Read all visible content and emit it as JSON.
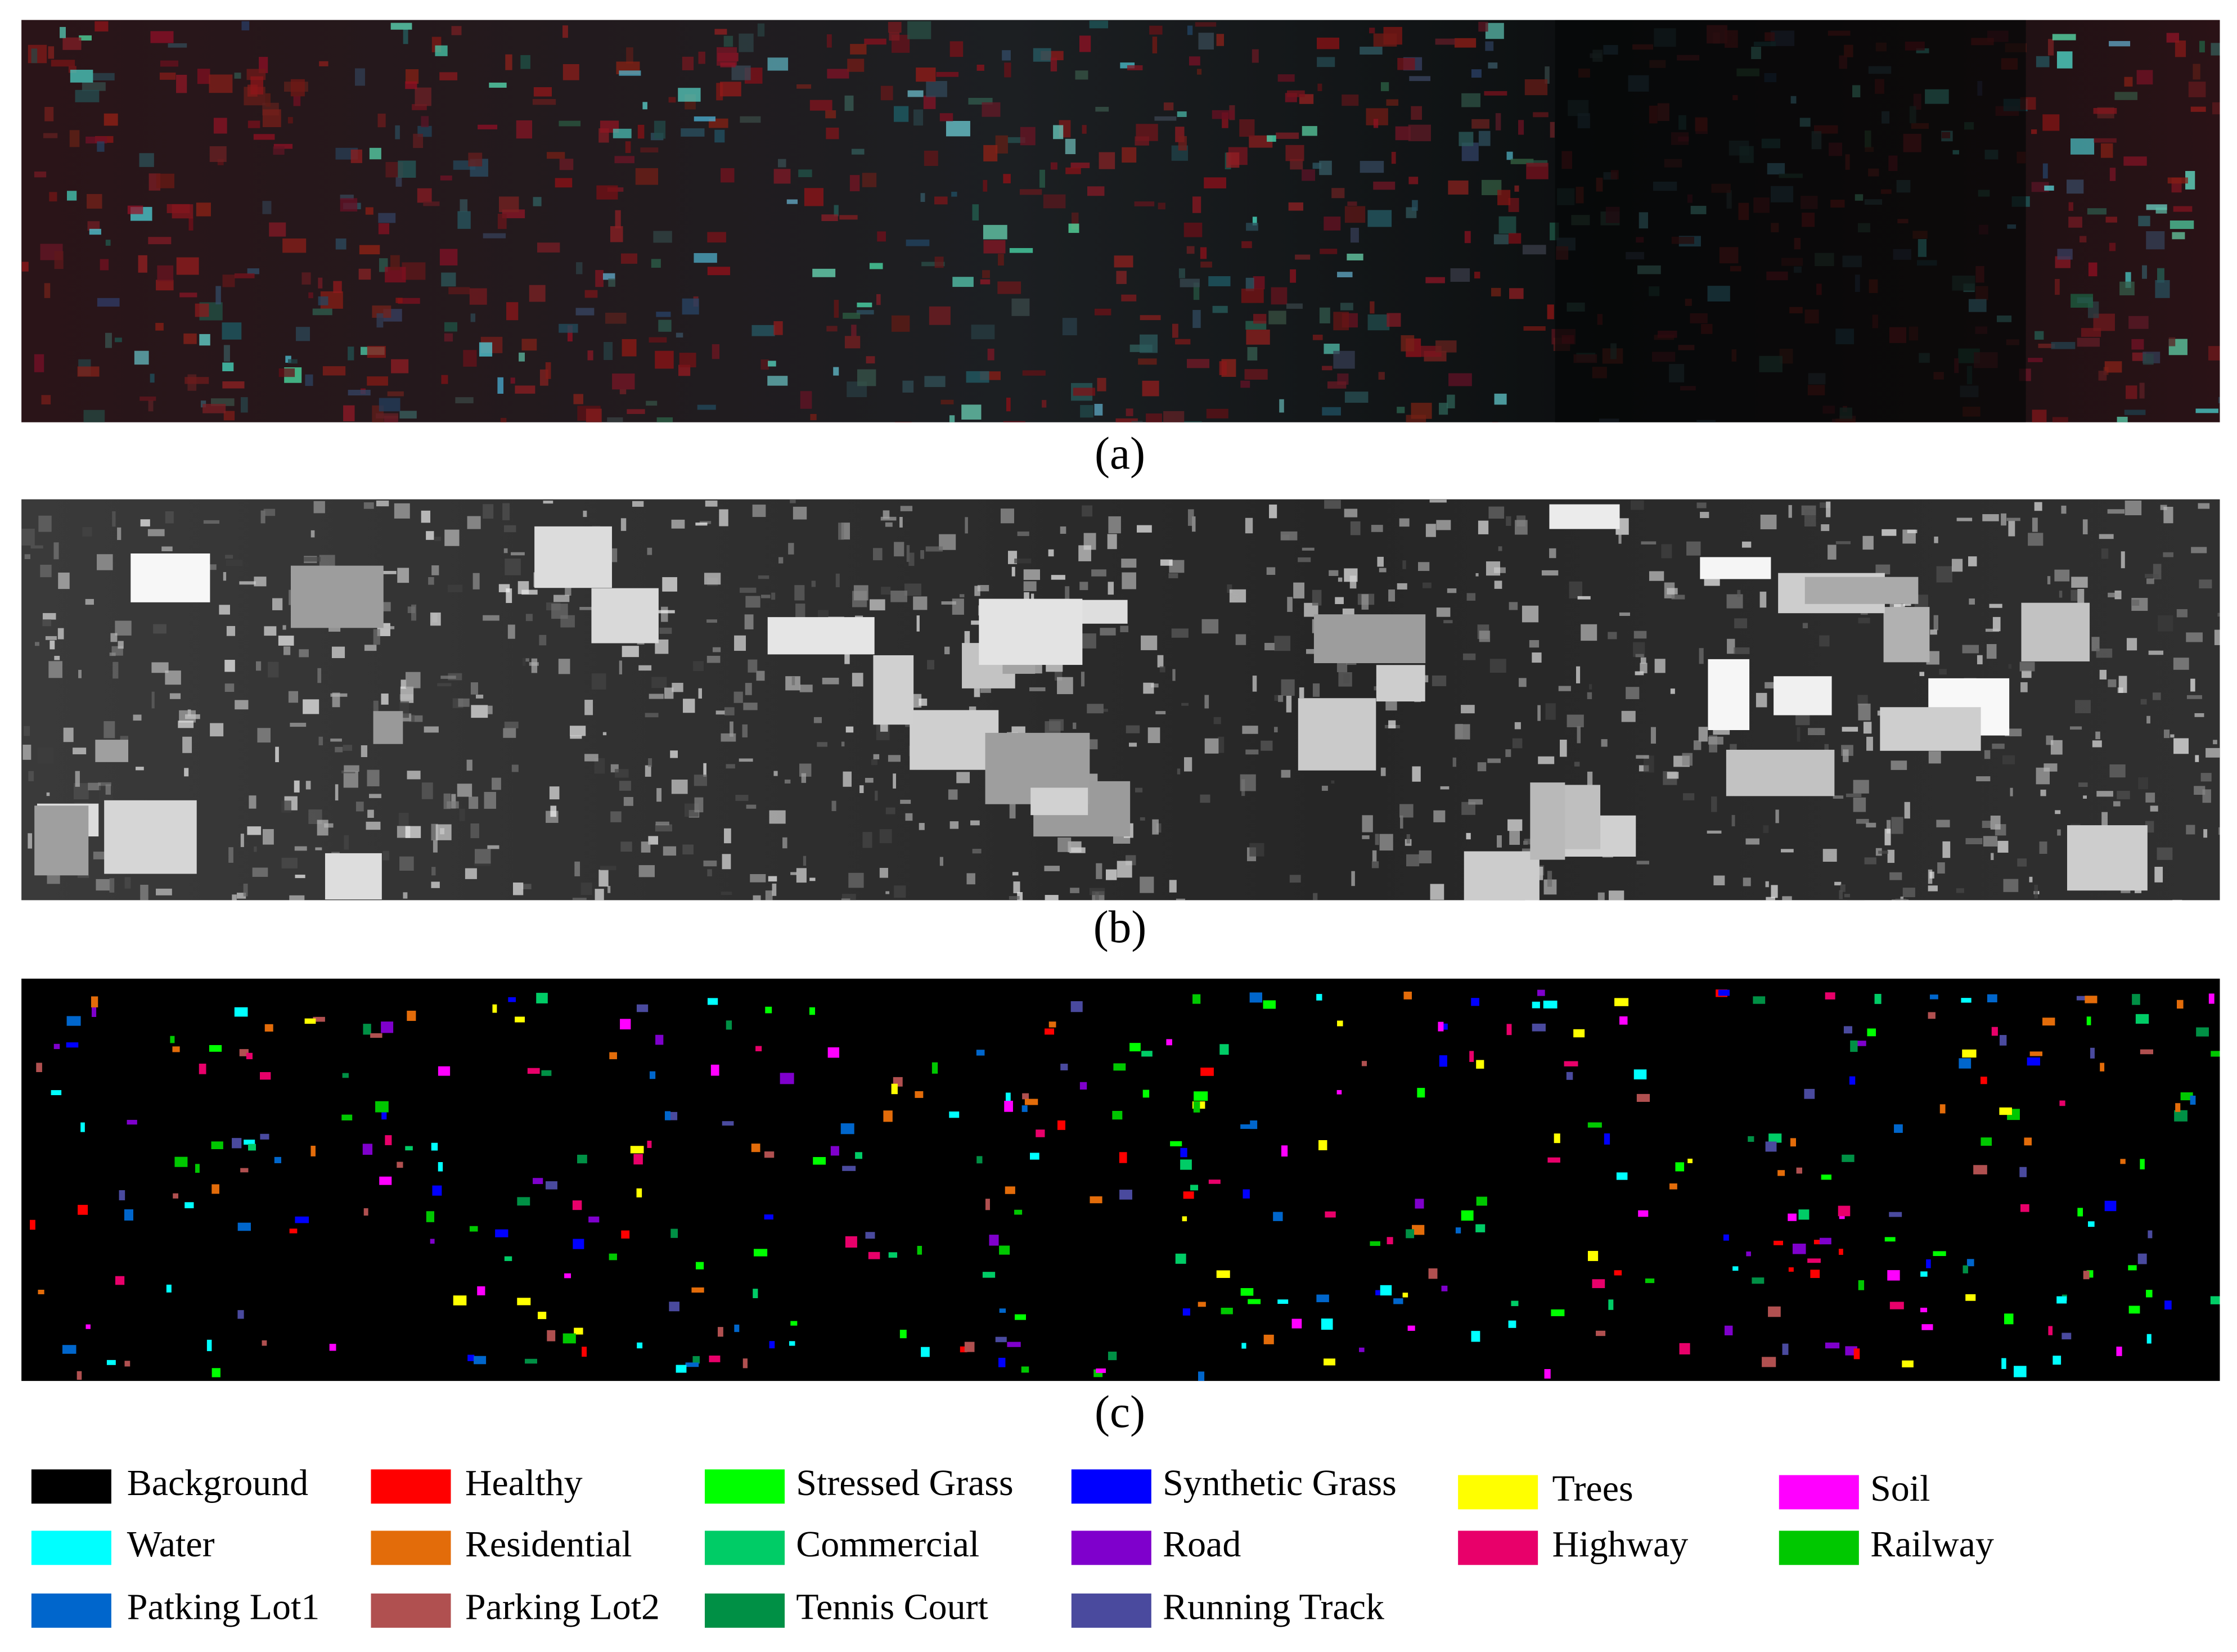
{
  "figure": {
    "captions": [
      "(a)",
      "(b)",
      "(c)"
    ],
    "legend": [
      {
        "label": "Background",
        "color": "#000000"
      },
      {
        "label": "Healthy",
        "color": "#ff0000"
      },
      {
        "label": "Stressed Grass",
        "color": "#00ff00"
      },
      {
        "label": "Synthetic Grass",
        "color": "#0000ff"
      },
      {
        "label": "Trees",
        "color": "#ffff00"
      },
      {
        "label": "Soil",
        "color": "#ff00ff"
      },
      {
        "label": "Water",
        "color": "#00ffff"
      },
      {
        "label": "Residential",
        "color": "#e36c0a"
      },
      {
        "label": "Commercial",
        "color": "#00cc66"
      },
      {
        "label": "Road",
        "color": "#7f00cc"
      },
      {
        "label": "Highway",
        "color": "#e8006a"
      },
      {
        "label": "Railway",
        "color": "#00c800"
      },
      {
        "label": "Patking Lot1",
        "color": "#0066cc"
      },
      {
        "label": "Parking Lot2",
        "color": "#b05050"
      },
      {
        "label": "Tennis Court",
        "color": "#009045"
      },
      {
        "label": "Running Track",
        "color": "#4a4a9e"
      }
    ]
  }
}
